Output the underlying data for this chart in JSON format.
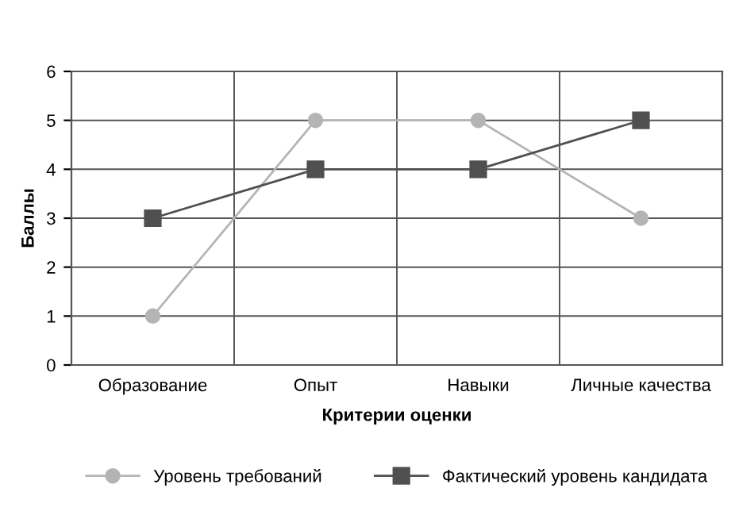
{
  "chart_data": {
    "type": "line",
    "xlabel": "Критерии оценки",
    "ylabel": "Баллы",
    "categories": [
      "Образование",
      "Опыт",
      "Навыки",
      "Личные качества"
    ],
    "series": [
      {
        "name": "Уровень требований",
        "color": "#b4b4b4",
        "marker": "circle",
        "values": [
          1,
          5,
          5,
          3
        ]
      },
      {
        "name": "Фактический уровень кандидата",
        "color": "#505050",
        "marker": "square",
        "values": [
          3,
          4,
          4,
          5
        ]
      }
    ],
    "ylim": [
      0,
      6
    ],
    "yticks": [
      0,
      1,
      2,
      3,
      4,
      5,
      6
    ],
    "grid": true,
    "legend": "bottom",
    "line_style": "solid"
  }
}
